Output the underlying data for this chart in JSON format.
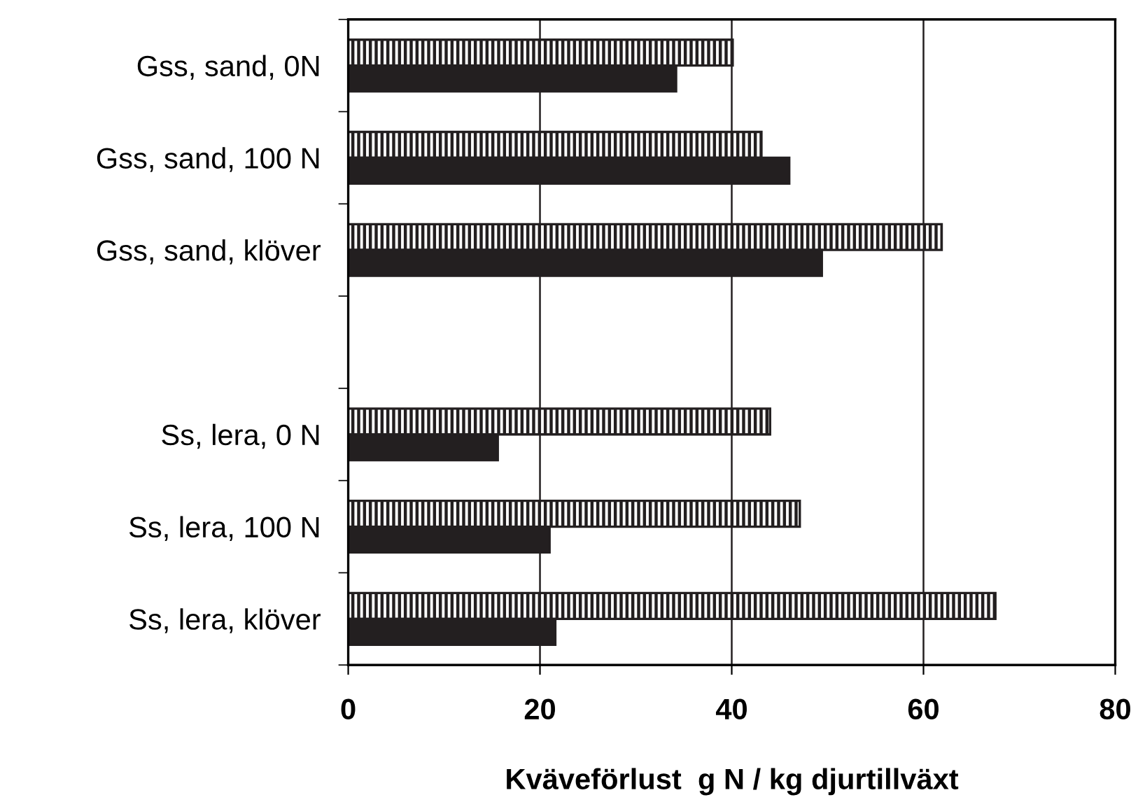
{
  "chart_data": {
    "type": "bar",
    "orientation": "horizontal",
    "xlabel": "Kväveförlust  g N / kg djurtillväxt",
    "categories": [
      "Gss, sand, 0N",
      "Gss, sand, 100 N",
      "Gss, sand, klöver",
      null,
      "Ss, lera, 0 N",
      "Ss, lera, 100 N",
      "Ss, lera, klöver"
    ],
    "series": [
      {
        "color": "#231f20",
        "values": [
          40.1,
          43.1,
          61.9,
          null,
          44.0,
          47.1,
          67.5
        ]
      },
      {
        "color": "#231f20",
        "values": [
          34.2,
          46.0,
          49.4,
          null,
          15.6,
          21.0,
          21.6
        ]
      }
    ],
    "xlim": [
      0,
      80
    ],
    "xticks": [
      0,
      20,
      40,
      60,
      80
    ],
    "grid": "x"
  }
}
